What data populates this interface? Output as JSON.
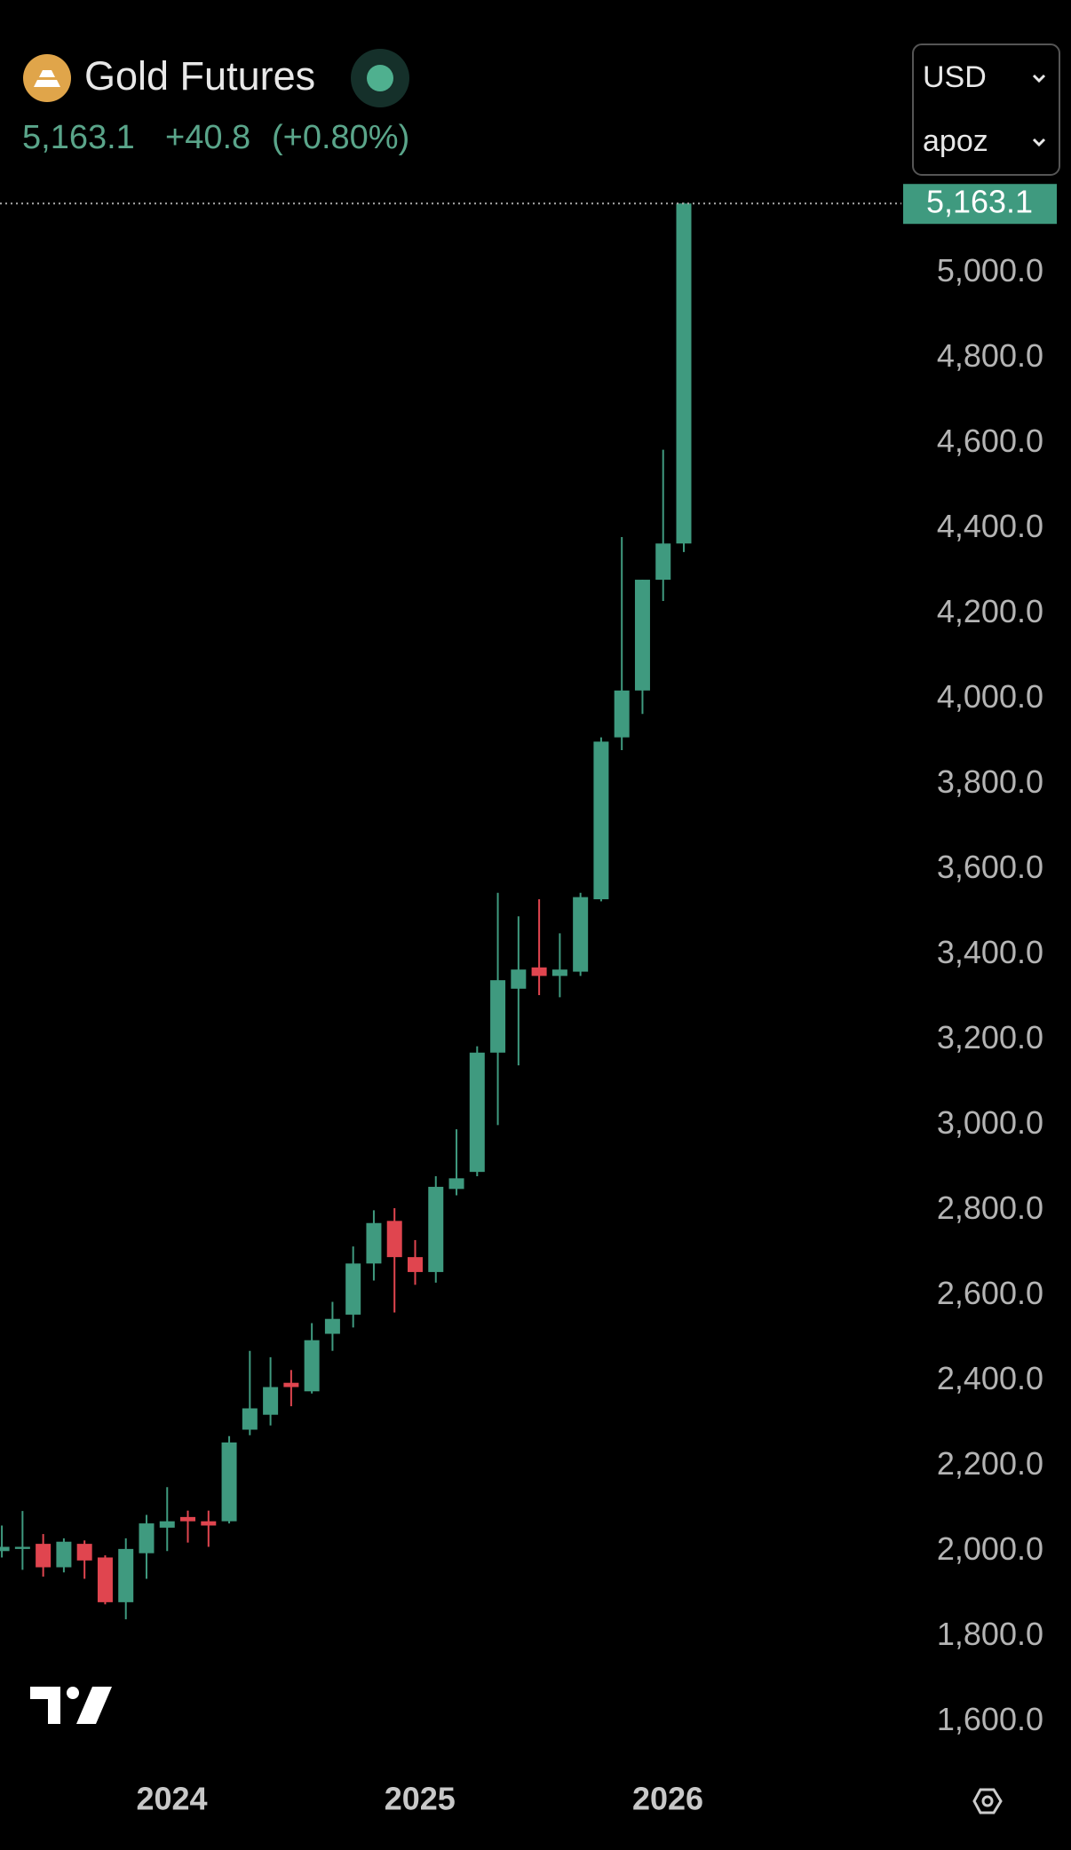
{
  "header": {
    "title": "Gold Futures",
    "price": "5,163.1",
    "change": "+40.8",
    "change_pct": "(+0.80%)",
    "currency": "USD",
    "account": "apoz"
  },
  "chart_data": {
    "type": "candlestick",
    "categories": [
      null,
      null,
      null,
      null,
      null,
      null,
      null,
      null,
      null,
      "2024",
      null,
      null,
      null,
      null,
      null,
      null,
      null,
      null,
      null,
      null,
      null,
      "2025",
      null,
      null,
      null,
      null,
      null,
      null,
      null,
      null,
      null,
      null,
      null,
      "2026"
    ],
    "open": [
      2000,
      2005,
      2017,
      1962,
      2017,
      1985,
      1880,
      1995,
      2055,
      2080,
      2070,
      2070,
      2285,
      2320,
      2395,
      2375,
      2510,
      2555,
      2675,
      2775,
      2690,
      2655,
      2850,
      2890,
      3170,
      3320,
      3370,
      3350,
      3360,
      3530,
      3910,
      4020,
      4280,
      4365
    ],
    "high": [
      2060,
      2094,
      2040,
      2030,
      2025,
      1990,
      2030,
      2085,
      2150,
      2095,
      2095,
      2270,
      2470,
      2455,
      2425,
      2535,
      2585,
      2715,
      2800,
      2805,
      2730,
      2880,
      2990,
      3185,
      3545,
      3490,
      3530,
      3450,
      3545,
      3910,
      4380,
      4280,
      4585,
      5165
    ],
    "low": [
      1985,
      1956,
      1940,
      1950,
      1935,
      1875,
      1840,
      1935,
      2000,
      2020,
      2010,
      2065,
      2272,
      2295,
      2340,
      2370,
      2470,
      2525,
      2635,
      2560,
      2625,
      2630,
      2835,
      2880,
      3000,
      3140,
      3305,
      3300,
      3350,
      3525,
      3880,
      3965,
      4230,
      4345
    ],
    "close": [
      2010,
      2010,
      1962,
      2022,
      1978,
      1880,
      2005,
      2065,
      2070,
      2070,
      2060,
      2255,
      2335,
      2385,
      2385,
      2495,
      2545,
      2675,
      2770,
      2690,
      2655,
      2855,
      2875,
      3170,
      3340,
      3365,
      3350,
      3365,
      3535,
      3900,
      4020,
      4280,
      4365,
      5163.1
    ],
    "up_color": "#3f9a7f",
    "down_color": "#e0454f",
    "ylim": [
      1513,
      5224
    ],
    "yticks": [
      {
        "value": 1600,
        "label": "1,600.0"
      },
      {
        "value": 1800,
        "label": "1,800.0"
      },
      {
        "value": 2000,
        "label": "2,000.0"
      },
      {
        "value": 2200,
        "label": "2,200.0"
      },
      {
        "value": 2400,
        "label": "2,400.0"
      },
      {
        "value": 2600,
        "label": "2,600.0"
      },
      {
        "value": 2800,
        "label": "2,800.0"
      },
      {
        "value": 3000,
        "label": "3,000.0"
      },
      {
        "value": 3200,
        "label": "3,200.0"
      },
      {
        "value": 3400,
        "label": "3,400.0"
      },
      {
        "value": 3600,
        "label": "3,600.0"
      },
      {
        "value": 3800,
        "label": "3,800.0"
      },
      {
        "value": 4000,
        "label": "4,000.0"
      },
      {
        "value": 4200,
        "label": "4,200.0"
      },
      {
        "value": 4400,
        "label": "4,400.0"
      },
      {
        "value": 4600,
        "label": "4,600.0"
      },
      {
        "value": 4800,
        "label": "4,800.0"
      },
      {
        "value": 5000,
        "label": "5,000.0"
      }
    ]
  }
}
